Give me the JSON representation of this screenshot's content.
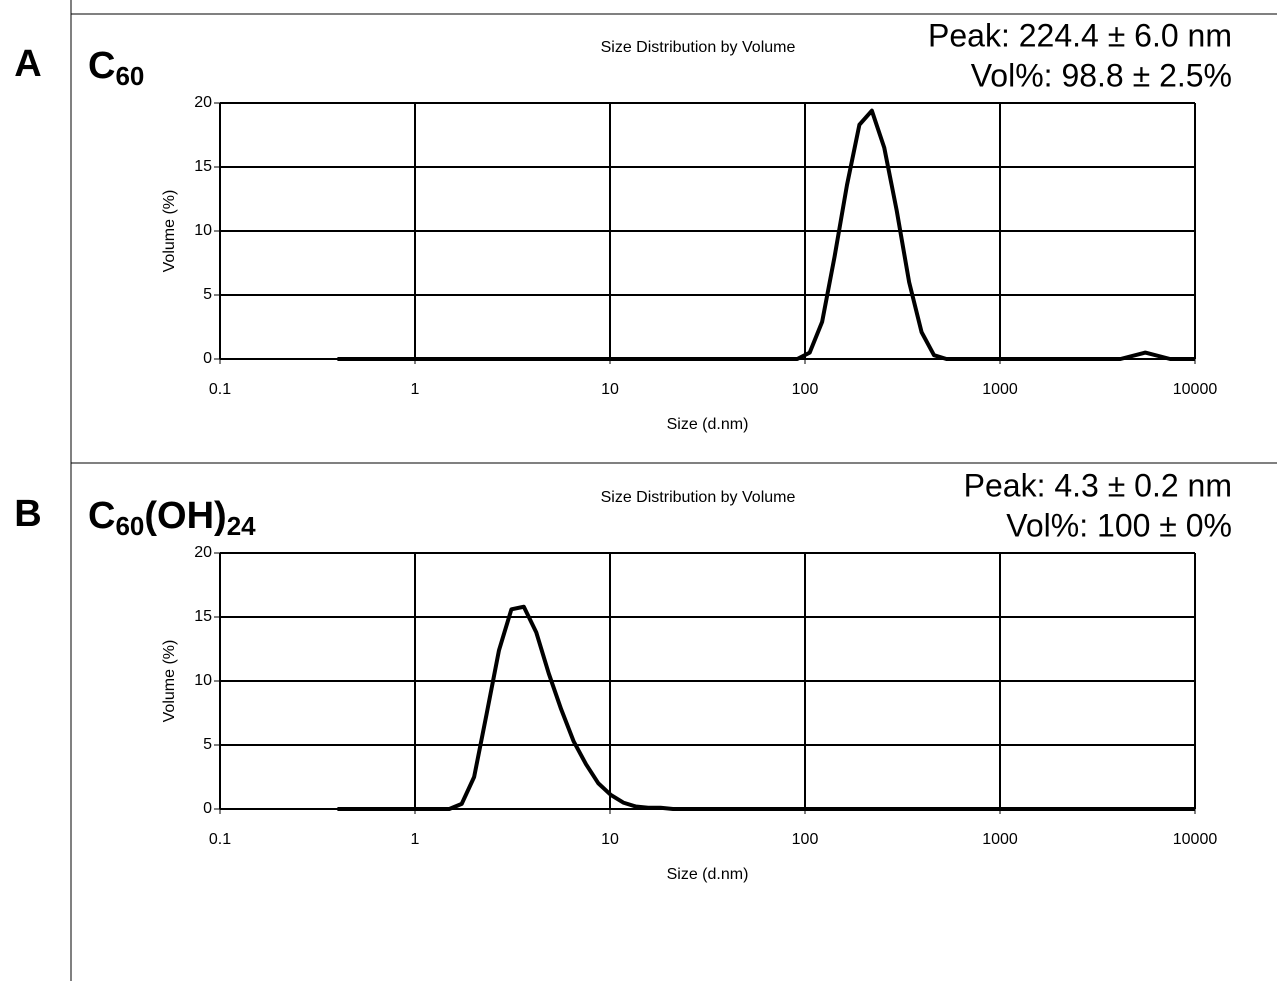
{
  "chart_data": [
    {
      "type": "line",
      "panel": "A",
      "label": [
        {
          "text": "C"
        },
        {
          "text": "60",
          "sub": true
        }
      ],
      "title": "Size Distribution by Volume",
      "annotations": [
        "Peak: 224.4 ± 6.0 nm",
        "Vol%: 98.8 ± 2.5%"
      ],
      "xlabel": "Size (d.nm)",
      "ylabel": "Volume (%)",
      "xscale": "log",
      "xlim": [
        0.1,
        10000
      ],
      "xticks": [
        0.1,
        1,
        10,
        100,
        1000,
        10000
      ],
      "ylim": [
        0,
        20
      ],
      "yticks": [
        0,
        5,
        10,
        15,
        20
      ],
      "grid": true,
      "color": "#000000",
      "x": [
        0.4,
        91.28,
        105.7,
        122.4,
        141.8,
        164.2,
        190.1,
        220.2,
        255.0,
        295.3,
        342.0,
        396.1,
        458.7,
        531.2,
        4145,
        5560,
        7456,
        10000
      ],
      "values": [
        0,
        0,
        0.5,
        2.9,
        8.0,
        13.6,
        18.3,
        19.4,
        16.5,
        11.6,
        6.0,
        2.1,
        0.3,
        0,
        0,
        0.5,
        0,
        0
      ]
    },
    {
      "type": "line",
      "panel": "B",
      "label": [
        {
          "text": "C"
        },
        {
          "text": "60",
          "sub": true
        },
        {
          "text": "(OH)"
        },
        {
          "text": "24",
          "sub": true
        }
      ],
      "title": "Size Distribution by Volume",
      "annotations": [
        "Peak: 4.3 ± 0.2 nm",
        "Vol%: 100 ± 0%"
      ],
      "xlabel": "Size (d.nm)",
      "ylabel": "Volume (%)",
      "xscale": "log",
      "xlim": [
        0.1,
        10000
      ],
      "xticks": [
        0.1,
        1,
        10,
        100,
        1000,
        10000
      ],
      "ylim": [
        0,
        20
      ],
      "yticks": [
        0,
        5,
        10,
        15,
        20
      ],
      "grid": true,
      "color": "#000000",
      "x": [
        0.4,
        1.499,
        1.736,
        2.01,
        2.328,
        2.696,
        3.122,
        3.615,
        4.187,
        4.849,
        5.615,
        6.503,
        7.531,
        8.721,
        10.1,
        11.7,
        13.54,
        15.69,
        18.17,
        21.04,
        10000
      ],
      "values": [
        0,
        0,
        0.4,
        2.5,
        7.4,
        12.4,
        15.6,
        15.8,
        13.8,
        10.6,
        7.8,
        5.3,
        3.5,
        2.0,
        1.1,
        0.5,
        0.2,
        0.1,
        0.1,
        0,
        0
      ]
    }
  ]
}
